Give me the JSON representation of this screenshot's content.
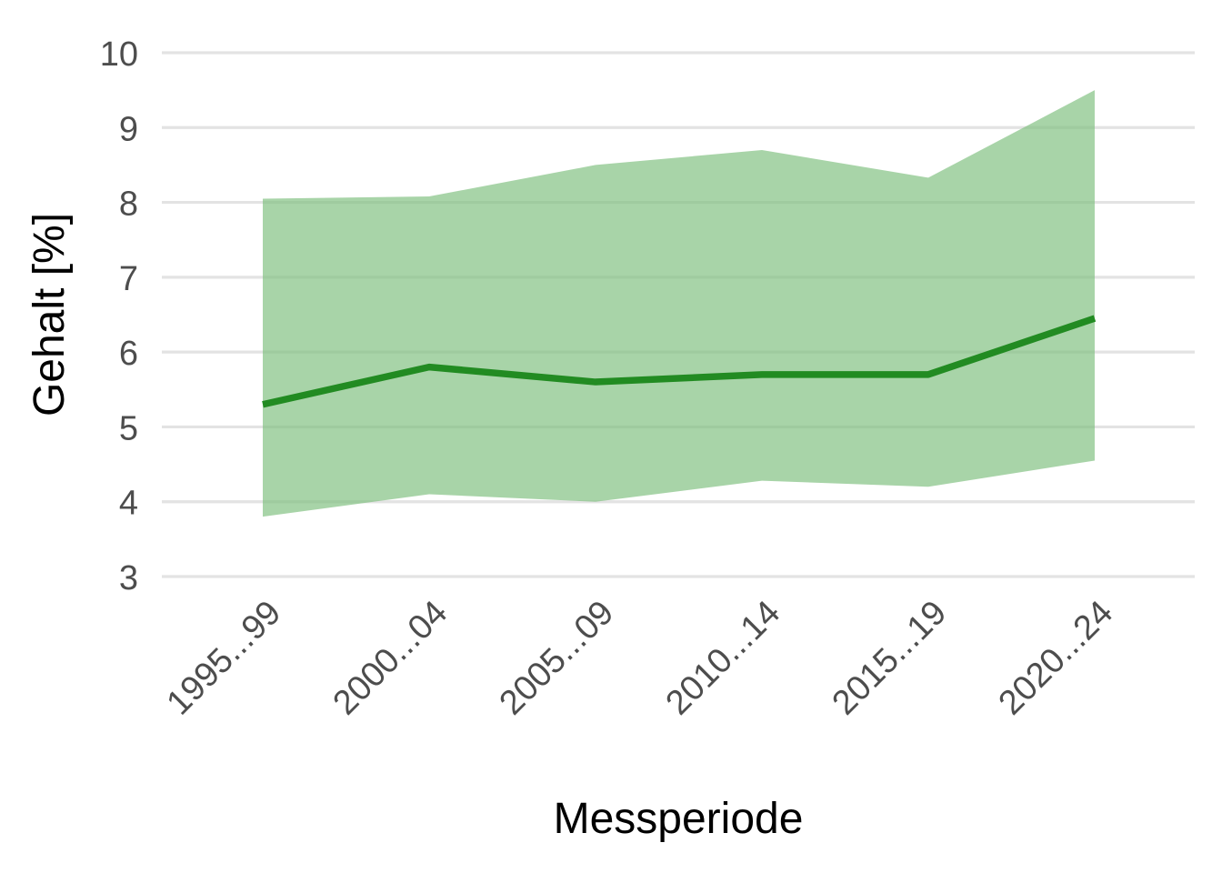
{
  "chart_data": {
    "type": "line",
    "title": "",
    "xlabel": "Messperiode",
    "ylabel": "Gehalt [%]",
    "categories": [
      "1995...99",
      "2000...04",
      "2005...09",
      "2010...14",
      "2015...19",
      "2020...24"
    ],
    "series": [
      {
        "values": [
          5.3,
          5.8,
          5.6,
          5.7,
          5.7,
          6.45
        ],
        "color": "#228B22"
      }
    ],
    "band": {
      "lower": [
        3.8,
        4.1,
        4.0,
        4.28,
        4.2,
        4.55
      ],
      "upper": [
        8.05,
        8.08,
        8.5,
        8.7,
        8.33,
        9.5
      ],
      "color": "#7FBF7F"
    },
    "ylim": [
      3,
      10
    ],
    "yticks": [
      3,
      4,
      5,
      6,
      7,
      8,
      9,
      10
    ],
    "grid": true,
    "legend": "none"
  }
}
